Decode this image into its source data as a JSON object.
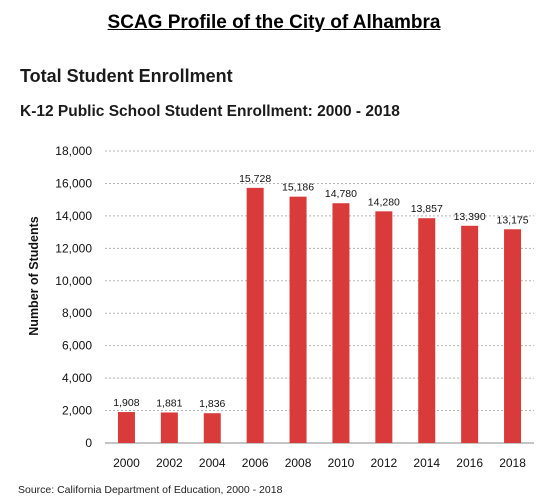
{
  "header": {
    "title": "SCAG Profile of the City of Alhambra",
    "section": "Total Student Enrollment"
  },
  "chart_data": {
    "type": "bar",
    "title": "K-12 Public School Student Enrollment: 2000 - 2018",
    "xlabel": "",
    "ylabel": "Number of Students",
    "ylim": [
      0,
      18000
    ],
    "yticks": [
      "0",
      "2,000",
      "4,000",
      "6,000",
      "8,000",
      "10,000",
      "12,000",
      "14,000",
      "16,000",
      "18,000"
    ],
    "grid": true,
    "legend": "none",
    "categories": [
      "2000",
      "2002",
      "2004",
      "2006",
      "2008",
      "2010",
      "2012",
      "2014",
      "2016",
      "2018"
    ],
    "values": [
      1908,
      1881,
      1836,
      15728,
      15186,
      14780,
      14280,
      13857,
      13390,
      13175
    ],
    "data_labels": [
      "1,908",
      "1,881",
      "1,836",
      "15,728",
      "15,186",
      "14,780",
      "14,280",
      "13,857",
      "13,390",
      "13,175"
    ],
    "bar_color": "#d93a3a",
    "grid_color": "#b5b5b5",
    "source": "Source: California Department of Education, 2000 - 2018"
  }
}
